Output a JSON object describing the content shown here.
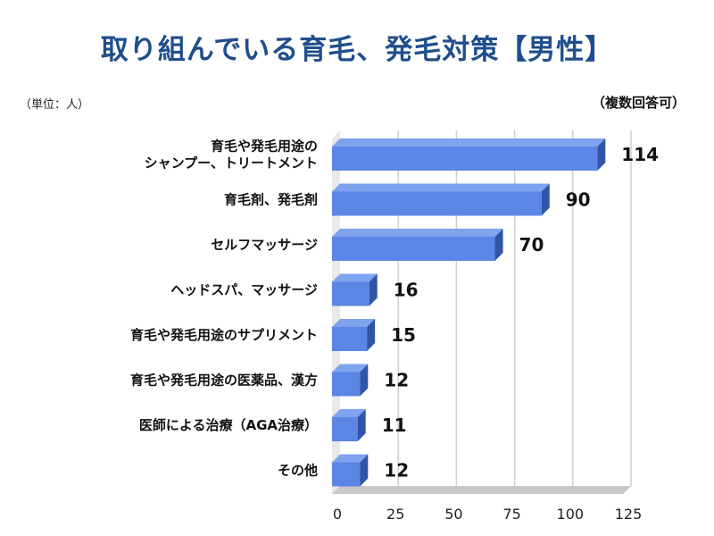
{
  "chart_data": {
    "type": "bar",
    "orientation": "horizontal",
    "title": "取り組んでいる育毛、発毛対策【男性】",
    "unit_label": "（単位：人）",
    "note": "（複数回答可）",
    "categories": [
      [
        "育毛や発毛用途の",
        "シャンプー、トリートメント"
      ],
      [
        "育毛剤、発毛剤"
      ],
      [
        "セルフマッサージ"
      ],
      [
        "ヘッドスパ、マッサージ"
      ],
      [
        "育毛や発毛用途のサプリメント"
      ],
      [
        "育毛や発毛用途の医薬品、漢方"
      ],
      [
        "医師による治療（AGA治療）"
      ],
      [
        "その他"
      ]
    ],
    "values": [
      114,
      90,
      70,
      16,
      15,
      12,
      11,
      12
    ],
    "xlim": [
      0,
      125
    ],
    "xticks": [
      0,
      25,
      50,
      75,
      100,
      125
    ],
    "grid": true,
    "colors": {
      "bar_front": "#5b86e5",
      "bar_top": "#7fa3ee",
      "bar_side": "#2f54a8",
      "floor": "#c8c8c8",
      "grid": "#cfcfcf"
    }
  }
}
